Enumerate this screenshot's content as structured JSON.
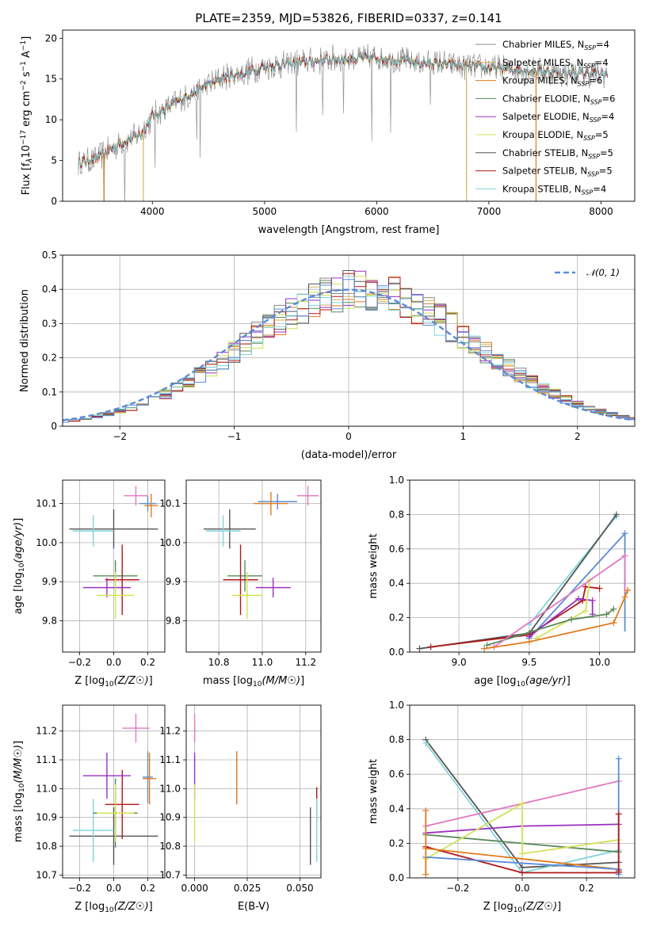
{
  "title": "PLATE=2359, MJD=53826, FIBERID=0337, z=0.141",
  "colors": {
    "Chabrier MILES": "#888888",
    "Salpeter MILES": "#d6b25c",
    "Kroupa MILES": "#e07b20",
    "Chabrier ELODIE": "#5a8a5a",
    "Salpeter ELODIE": "#9b30c0",
    "Kroupa ELODIE": "#d4e157",
    "Chabrier STELIB": "#555555",
    "Salpeter STELIB": "#b01818",
    "Kroupa STELIB": "#7fd4dc",
    "extra_pink": "#e377c2",
    "extra_blue": "#5b8bd6"
  },
  "chart_data": [
    {
      "id": "spectrum",
      "type": "line",
      "title": "PLATE=2359, MJD=53826, FIBERID=0337, z=0.141",
      "xlabel": "wavelength [Angstrom, rest frame]",
      "ylabel": "Flux [f_λ10^-17 erg cm^-2 s^-1 A^-1]",
      "xlim": [
        3200,
        8300
      ],
      "ylim": [
        0,
        21
      ],
      "xticks": [
        4000,
        5000,
        6000,
        7000,
        8000
      ],
      "yticks": [
        0,
        5,
        10,
        15,
        20
      ],
      "legend_position": "right",
      "continuum": {
        "x": [
          3350,
          3500,
          3700,
          3900,
          4000,
          4200,
          4400,
          4600,
          4800,
          5000,
          5300,
          5600,
          6000,
          6400,
          6800,
          7200,
          7600,
          8050
        ],
        "y": [
          4.8,
          5.2,
          7.0,
          8.3,
          10.4,
          12.0,
          13.6,
          15.0,
          15.7,
          16.5,
          17.0,
          17.4,
          17.6,
          17.0,
          16.6,
          16.2,
          15.8,
          15.6
        ]
      },
      "series": [
        {
          "name": "Chabrier MILES",
          "label": "Chabrier MILES, N_SSP=4"
        },
        {
          "name": "Salpeter MILES",
          "label": "Salpeter MILES, N_SSP=4"
        },
        {
          "name": "Kroupa MILES",
          "label": "Kroupa MILES, N_SSP=6"
        },
        {
          "name": "Chabrier ELODIE",
          "label": "Chabrier ELODIE, N_SSP=6"
        },
        {
          "name": "Salpeter ELODIE",
          "label": "Salpeter ELODIE, N_SSP=4"
        },
        {
          "name": "Kroupa ELODIE",
          "label": "Kroupa ELODIE, N_SSP=5"
        },
        {
          "name": "Chabrier STELIB",
          "label": "Chabrier STELIB, N_SSP=5"
        },
        {
          "name": "Salpeter STELIB",
          "label": "Salpeter STELIB, N_SSP=5"
        },
        {
          "name": "Kroupa STELIB",
          "label": "Kroupa STELIB, N_SSP=4"
        }
      ]
    },
    {
      "id": "residuals",
      "type": "line",
      "xlabel": "(data-model)/error",
      "ylabel": "Normed distribution",
      "xlim": [
        -2.5,
        2.5
      ],
      "ylim": [
        0,
        0.5
      ],
      "xticks": [
        -2,
        -1,
        0,
        1,
        2
      ],
      "yticks": [
        0.0,
        0.1,
        0.2,
        0.3,
        0.4,
        0.5
      ],
      "grid": true,
      "legend_position": "top-right",
      "reference": {
        "name": "N(0,1)",
        "label": "𝒩(0, 1)"
      },
      "bin_width": 0.1
    },
    {
      "id": "age_vs_Z",
      "type": "scatter",
      "xlabel": "Z [log10(Z/Z☉)]",
      "ylabel": "age [log10(age/yr)]",
      "xlim": [
        -0.3,
        0.3
      ],
      "ylim": [
        9.72,
        10.16
      ],
      "xticks": [
        "-0.2",
        "0.0",
        "0.2"
      ],
      "yticks": [
        "9.8",
        "9.9",
        "10.0",
        "10.1"
      ],
      "grid": true,
      "points": [
        {
          "x": 0.0,
          "xerr": 0.26,
          "y": 10.035,
          "yerr": 0.05,
          "color": "#555555"
        },
        {
          "x": -0.12,
          "xerr": 0.12,
          "y": 10.03,
          "yerr": 0.04,
          "color": "#7fd4dc"
        },
        {
          "x": 0.2,
          "xerr": 0.05,
          "y": 10.1,
          "yerr": 0.02,
          "color": "#5b8bd6"
        },
        {
          "x": 0.13,
          "xerr": 0.07,
          "y": 10.12,
          "yerr": 0.025,
          "color": "#e377c2"
        },
        {
          "x": 0.22,
          "xerr": 0.04,
          "y": 10.095,
          "yerr": 0.03,
          "color": "#e07b20"
        },
        {
          "x": 0.01,
          "xerr": 0.13,
          "y": 9.915,
          "yerr": 0.04,
          "color": "#5a8a5a"
        },
        {
          "x": 0.05,
          "xerr": 0.1,
          "y": 9.905,
          "yerr": 0.09,
          "color": "#b01818"
        },
        {
          "x": -0.04,
          "xerr": 0.14,
          "y": 9.885,
          "yerr": 0.025,
          "color": "#9b30c0"
        },
        {
          "x": 0.01,
          "xerr": 0.11,
          "y": 9.865,
          "yerr": 0.06,
          "color": "#d4e157"
        }
      ]
    },
    {
      "id": "age_vs_mass",
      "type": "scatter",
      "xlabel": "mass [log10(M/M☉)]",
      "xlim": [
        10.65,
        11.27
      ],
      "ylim": [
        9.72,
        10.16
      ],
      "xticks": [
        "10.8",
        "11.0",
        "11.2"
      ],
      "yticks": [
        "9.8",
        "9.9",
        "10.0",
        "10.1"
      ],
      "grid": true,
      "points": [
        {
          "x": 10.85,
          "xerr": 0.12,
          "y": 10.035,
          "yerr": 0.05,
          "color": "#555555"
        },
        {
          "x": 10.82,
          "xerr": 0.08,
          "y": 10.03,
          "yerr": 0.04,
          "color": "#7fd4dc"
        },
        {
          "x": 11.07,
          "xerr": 0.09,
          "y": 10.105,
          "yerr": 0.02,
          "color": "#5b8bd6"
        },
        {
          "x": 11.21,
          "xerr": 0.05,
          "y": 10.12,
          "yerr": 0.025,
          "color": "#e377c2"
        },
        {
          "x": 11.04,
          "xerr": 0.08,
          "y": 10.1,
          "yerr": 0.03,
          "color": "#e07b20"
        },
        {
          "x": 10.92,
          "xerr": 0.08,
          "y": 9.915,
          "yerr": 0.04,
          "color": "#5a8a5a"
        },
        {
          "x": 10.9,
          "xerr": 0.08,
          "y": 9.905,
          "yerr": 0.09,
          "color": "#b01818"
        },
        {
          "x": 11.05,
          "xerr": 0.08,
          "y": 9.885,
          "yerr": 0.025,
          "color": "#9b30c0"
        },
        {
          "x": 10.93,
          "xerr": 0.07,
          "y": 9.865,
          "yerr": 0.06,
          "color": "#d4e157"
        }
      ]
    },
    {
      "id": "weight_vs_age",
      "type": "line",
      "xlabel": "age [log10(age/yr)]",
      "ylabel": "mass weight",
      "xlim": [
        8.65,
        10.25
      ],
      "ylim": [
        0,
        1
      ],
      "xticks": [
        "9.0",
        "9.5",
        "10.0"
      ],
      "yticks": [
        "0.0",
        "0.2",
        "0.4",
        "0.6",
        "0.8",
        "1.0"
      ],
      "grid": true,
      "series": [
        {
          "color": "#7fd4dc",
          "x": [
            9.5,
            10.12
          ],
          "y": [
            0.16,
            0.79
          ]
        },
        {
          "color": "#555555",
          "x": [
            8.72,
            9.5,
            10.12
          ],
          "y": [
            0.02,
            0.11,
            0.8
          ]
        },
        {
          "color": "#5b8bd6",
          "x": [
            9.5,
            10.18
          ],
          "y": [
            0.08,
            0.69
          ],
          "vbar": [
            10.18,
            0.12,
            0.69
          ]
        },
        {
          "color": "#b01818",
          "x": [
            8.8,
            9.5,
            9.88,
            9.9,
            10.0
          ],
          "y": [
            0.03,
            0.1,
            0.3,
            0.38,
            0.37
          ]
        },
        {
          "color": "#9b30c0",
          "x": [
            9.5,
            9.85,
            9.95,
            9.95
          ],
          "y": [
            0.09,
            0.31,
            0.3,
            0.22
          ]
        },
        {
          "color": "#d4e157",
          "x": [
            9.55,
            9.9,
            9.93
          ],
          "y": [
            0.08,
            0.24,
            0.42
          ]
        },
        {
          "color": "#5a8a5a",
          "x": [
            9.2,
            9.8,
            10.05,
            10.1
          ],
          "y": [
            0.04,
            0.19,
            0.22,
            0.25
          ]
        },
        {
          "color": "#e377c2",
          "x": [
            9.25,
            10.18
          ],
          "y": [
            0.03,
            0.56
          ],
          "vbar": [
            10.18,
            0.35,
            0.56
          ]
        },
        {
          "color": "#e07b20",
          "x": [
            9.18,
            9.5,
            10.1,
            10.18,
            10.2
          ],
          "y": [
            0.02,
            0.06,
            0.17,
            0.32,
            0.36
          ]
        }
      ]
    },
    {
      "id": "mass_vs_Z",
      "type": "scatter",
      "xlabel": "Z [log10(Z/Z☉)]",
      "ylabel": "mass [log10(M/M☉)]",
      "xlim": [
        -0.3,
        0.3
      ],
      "ylim": [
        10.69,
        11.29
      ],
      "xticks": [
        "-0.2",
        "0.0",
        "0.2"
      ],
      "yticks": [
        "10.7",
        "10.8",
        "10.9",
        "11.0",
        "11.1",
        "11.2"
      ],
      "grid": true,
      "points": [
        {
          "x": 0.0,
          "xerr": 0.26,
          "y": 10.835,
          "yerr": 0.1,
          "color": "#555555"
        },
        {
          "x": -0.12,
          "xerr": 0.12,
          "y": 10.855,
          "yerr": 0.11,
          "color": "#7fd4dc"
        },
        {
          "x": 0.2,
          "xerr": 0.03,
          "y": 11.04,
          "yerr": 0.09,
          "color": "#5b8bd6"
        },
        {
          "x": 0.13,
          "xerr": 0.08,
          "y": 11.21,
          "yerr": 0.05,
          "color": "#e377c2"
        },
        {
          "x": 0.21,
          "xerr": 0.04,
          "y": 11.035,
          "yerr": 0.09,
          "color": "#e07b20"
        },
        {
          "x": 0.01,
          "xerr": 0.13,
          "y": 10.915,
          "yerr": 0.12,
          "color": "#5a8a5a"
        },
        {
          "x": 0.05,
          "xerr": 0.1,
          "y": 10.945,
          "yerr": 0.12,
          "color": "#b01818"
        },
        {
          "x": -0.04,
          "xerr": 0.14,
          "y": 11.045,
          "yerr": 0.08,
          "color": "#9b30c0"
        },
        {
          "x": 0.01,
          "xerr": 0.11,
          "y": 10.915,
          "yerr": 0.1,
          "color": "#d4e157"
        }
      ]
    },
    {
      "id": "mass_vs_ebv",
      "type": "scatter",
      "xlabel": "E(B-V)",
      "xlim": [
        -0.004,
        0.06
      ],
      "ylim": [
        10.69,
        11.29
      ],
      "xticks": [
        "0.000",
        "0.025",
        "0.050"
      ],
      "yticks": [
        "10.7",
        "10.8",
        "10.9",
        "11.0",
        "11.1",
        "11.2"
      ],
      "grid": true,
      "points": [
        {
          "x": 0.0,
          "y": 11.21,
          "yerr": 0.05,
          "color": "#e377c2"
        },
        {
          "x": 0.0,
          "y": 11.045,
          "yerr": 0.08,
          "color": "#9b30c0"
        },
        {
          "x": 0.0,
          "y": 10.915,
          "yerr": 0.1,
          "color": "#d4e157"
        },
        {
          "x": 0.02,
          "y": 11.04,
          "yerr": 0.09,
          "color": "#5b8bd6"
        },
        {
          "x": 0.02,
          "y": 11.035,
          "yerr": 0.09,
          "color": "#e07b20"
        },
        {
          "x": 0.055,
          "y": 10.835,
          "yerr": 0.1,
          "color": "#555555"
        },
        {
          "x": 0.058,
          "y": 10.945,
          "yerr": 0.06,
          "color": "#b01818"
        },
        {
          "x": 0.058,
          "y": 10.855,
          "yerr": 0.11,
          "color": "#7fd4dc"
        }
      ]
    },
    {
      "id": "weight_vs_Z",
      "type": "line",
      "xlabel": "Z [log10(Z/Z☉)]",
      "ylabel": "mass weight",
      "xlim": [
        -0.35,
        0.35
      ],
      "ylim": [
        0,
        1
      ],
      "xticks": [
        "-0.2",
        "0.0",
        "0.2"
      ],
      "yticks": [
        "0.0",
        "0.2",
        "0.4",
        "0.6",
        "0.8",
        "1.0"
      ],
      "grid": true,
      "series": [
        {
          "color": "#555555",
          "x": [
            -0.3,
            0.0,
            0.3
          ],
          "y": [
            0.8,
            0.06,
            0.09
          ]
        },
        {
          "color": "#7fd4dc",
          "x": [
            -0.3,
            0.0,
            0.3
          ],
          "y": [
            0.78,
            0.03,
            0.16
          ]
        },
        {
          "color": "#e377c2",
          "x": [
            -0.3,
            0.3
          ],
          "y": [
            0.3,
            0.56
          ]
        },
        {
          "color": "#9b30c0",
          "x": [
            -0.3,
            0.0,
            0.3
          ],
          "y": [
            0.26,
            0.3,
            0.31
          ]
        },
        {
          "color": "#5a8a5a",
          "x": [
            -0.3,
            0.3
          ],
          "y": [
            0.25,
            0.15
          ]
        },
        {
          "color": "#d4e157",
          "x": [
            -0.3,
            0.0,
            0.0,
            0.3
          ],
          "y": [
            0.11,
            0.43,
            0.14,
            0.22
          ]
        },
        {
          "color": "#b01818",
          "x": [
            -0.3,
            0.0,
            0.3
          ],
          "y": [
            0.18,
            0.03,
            0.03
          ]
        },
        {
          "color": "#e07b20",
          "x": [
            -0.3,
            0.3
          ],
          "y": [
            0.17,
            0.05
          ]
        },
        {
          "color": "#5b8bd6",
          "x": [
            -0.3,
            0.3
          ],
          "y": [
            0.12,
            0.05
          ]
        },
        {
          "color": "#5b8bd6",
          "x": [
            0.3,
            0.3
          ],
          "y": [
            0.02,
            0.69
          ]
        },
        {
          "color": "#b01818",
          "x": [
            0.3,
            0.3
          ],
          "y": [
            0.04,
            0.37
          ]
        },
        {
          "color": "#e07b20",
          "x": [
            -0.3,
            -0.3
          ],
          "y": [
            0.02,
            0.39
          ]
        }
      ]
    }
  ]
}
